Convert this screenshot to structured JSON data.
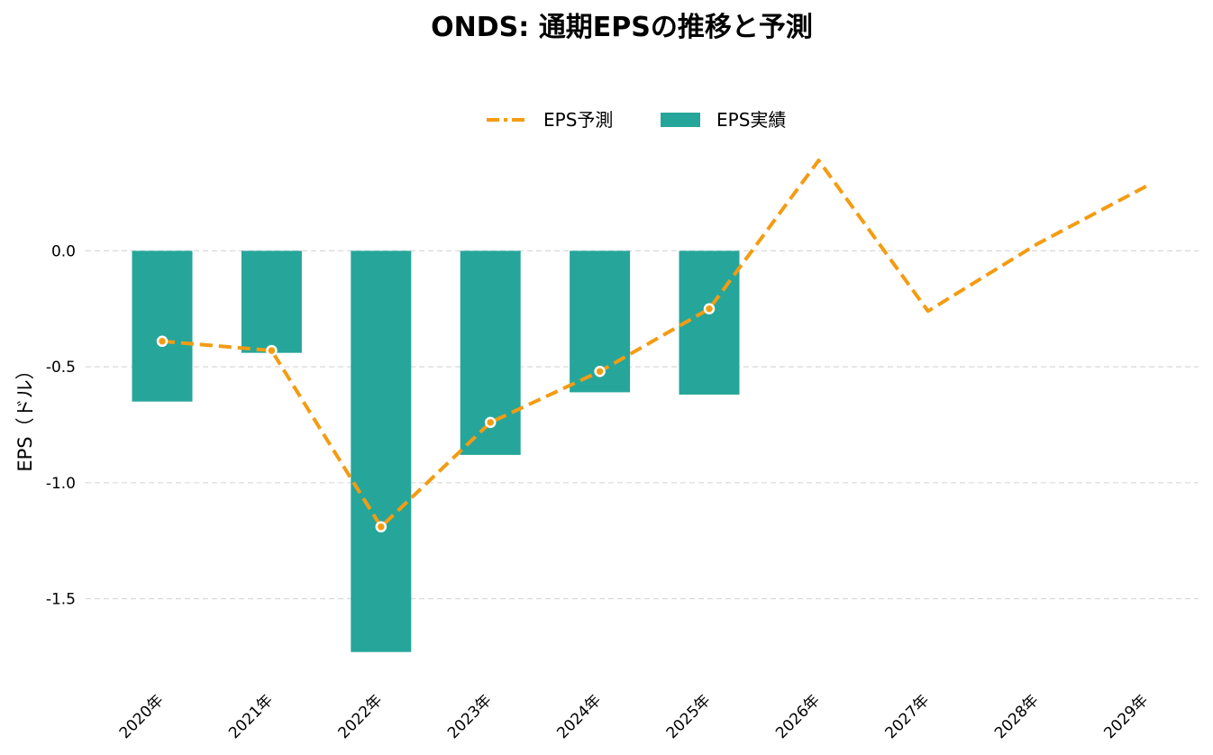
{
  "chart_data": {
    "type": "bar",
    "title": "ONDS: 通期EPSの推移と予測",
    "xlabel": "",
    "ylabel": "EPS（ドル）",
    "categories": [
      "2020年",
      "2021年",
      "2022年",
      "2023年",
      "2024年",
      "2025年",
      "2026年",
      "2027年",
      "2028年",
      "2029年"
    ],
    "series": [
      {
        "name": "EPS実績",
        "type": "bar",
        "color": "#26a69a",
        "values": [
          -0.65,
          -0.44,
          -1.73,
          -0.88,
          -0.61,
          -0.62,
          null,
          null,
          null,
          null
        ]
      },
      {
        "name": "EPS予測",
        "type": "line",
        "color": "#f39c12",
        "style": "dashed",
        "values": [
          -0.39,
          -0.43,
          -1.19,
          -0.74,
          -0.52,
          -0.25,
          0.39,
          -0.26,
          0.03,
          0.28
        ]
      }
    ],
    "yticks": [
      "0.0",
      "-0.5",
      "-1.0",
      "-1.5"
    ],
    "ytick_values": [
      0.0,
      -0.5,
      -1.0,
      -1.5
    ],
    "ylim": [
      -1.84,
      0.46
    ],
    "grid": true,
    "legend_position": "top-center"
  }
}
